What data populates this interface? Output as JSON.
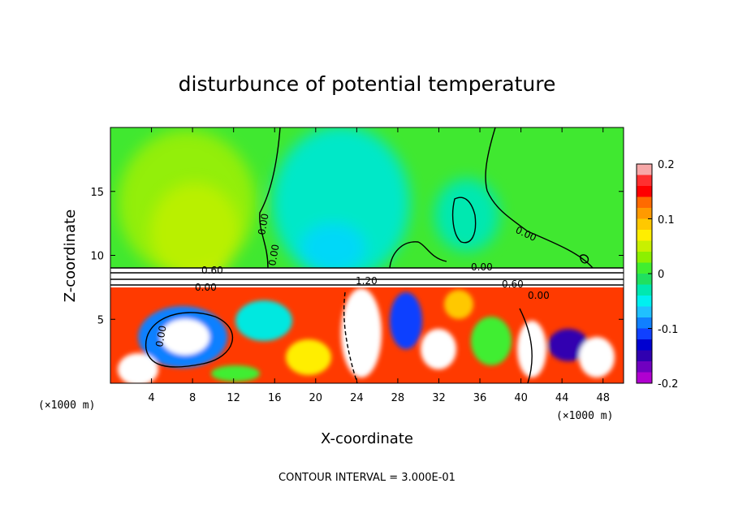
{
  "chart_data": {
    "type": "heatmap",
    "title": "disturbunce of potential temperature",
    "xlabel": "X-coordinate",
    "ylabel": "Z-coordinate",
    "x_unit": "(×1000 m)",
    "z_unit": "(×1000 m)",
    "xlim": [
      0,
      50
    ],
    "ylim": [
      0,
      20
    ],
    "x_ticks": [
      4,
      8,
      12,
      16,
      20,
      24,
      28,
      32,
      36,
      40,
      44,
      48
    ],
    "y_ticks": [
      5,
      10,
      15
    ],
    "colorbar": {
      "min": -0.2,
      "max": 0.2,
      "tick_labels": [
        "0.2",
        "0.1",
        "0",
        "-0.1",
        "-0.2"
      ],
      "colors": [
        "#f7a8a8",
        "#ff3030",
        "#ff0000",
        "#ff6a00",
        "#ff9a00",
        "#ffc800",
        "#ffee00",
        "#c8f000",
        "#8cf000",
        "#40ee30",
        "#20e060",
        "#00e8b0",
        "#00f0f0",
        "#20c0ff",
        "#1080ff",
        "#1040ff",
        "#0000d0",
        "#3000b0",
        "#7000c0",
        "#b000d0"
      ]
    },
    "contour_labels": [
      "0.00",
      "0.00",
      "0.00",
      "0.00",
      "0.60",
      "0.00",
      "1.20",
      "0.60",
      "0.00",
      "0.00"
    ],
    "footnote": "CONTOUR INTERVAL = 3.000E-01"
  }
}
